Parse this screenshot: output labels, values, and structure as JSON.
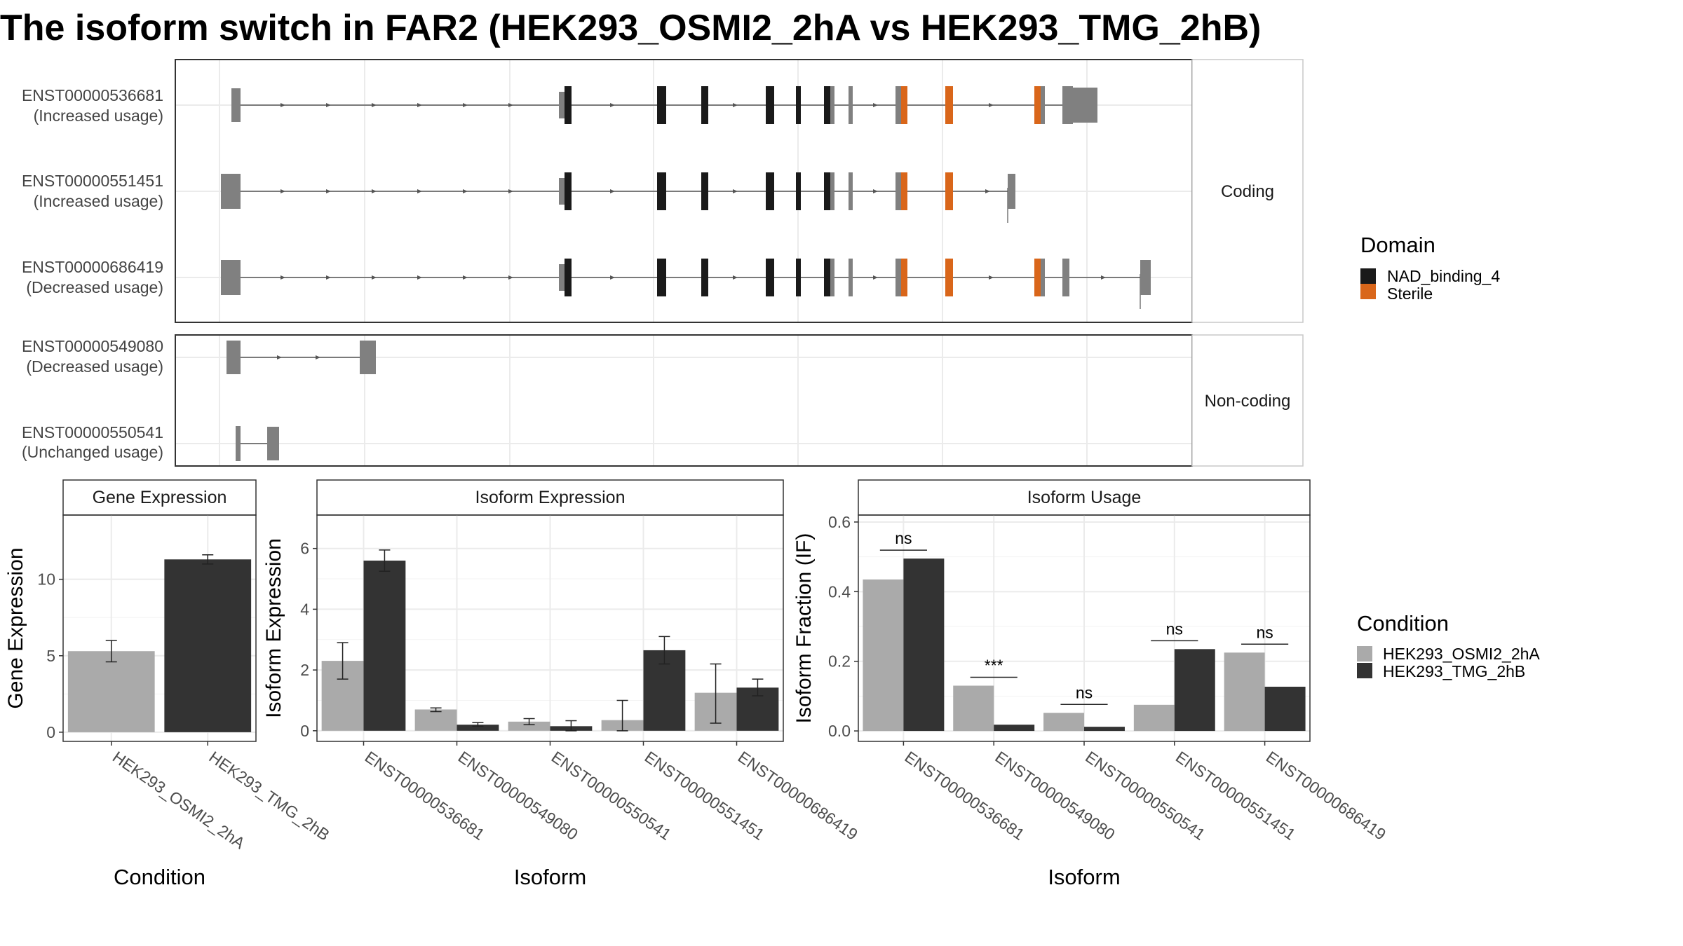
{
  "title": "The isoform switch in FAR2 (HEK293_OSMI2_2hA vs HEK293_TMG_2hB)",
  "colors": {
    "exon": "#808080",
    "intron": "#555555",
    "cond1": "#aaaaaa",
    "cond2": "#333333",
    "NAD_binding_4": "#1a1a1a",
    "Sterile": "#d9661a",
    "panel_border": "#333333",
    "strip_border": "#c8c8c8",
    "grid": "#ebebeb"
  },
  "structure": {
    "facets": [
      "Coding",
      "Non-coding"
    ],
    "domain_legend": {
      "title": "Domain",
      "items": [
        "NAD_binding_4",
        "Sterile"
      ]
    },
    "tracks": [
      {
        "id": "ENST00000536681",
        "usage": "(Increased usage)",
        "facet": "Coding"
      },
      {
        "id": "ENST00000551451",
        "usage": "(Increased usage)",
        "facet": "Coding"
      },
      {
        "id": "ENST00000686419",
        "usage": "(Decreased usage)",
        "facet": "Coding"
      },
      {
        "id": "ENST00000549080",
        "usage": "(Decreased usage)",
        "facet": "Non-coding"
      },
      {
        "id": "ENST00000550541",
        "usage": "(Unchanged usage)",
        "facet": "Non-coding"
      }
    ]
  },
  "chart_data": [
    {
      "type": "bar",
      "title": "Gene Expression",
      "xlabel": "Condition",
      "ylabel": "Gene Expression",
      "categories": [
        "HEK293_OSMI2_2hA",
        "HEK293_TMG_2hB"
      ],
      "values": [
        5.3,
        11.3
      ],
      "errors": [
        [
          4.6,
          6.0
        ],
        [
          11.0,
          11.6
        ]
      ],
      "ylim": [
        -0.6,
        14.2
      ],
      "yticks": [
        0,
        5,
        10
      ],
      "grid": true
    },
    {
      "type": "bar",
      "title": "Isoform Expression",
      "xlabel": "Isoform",
      "ylabel": "Isoform Expression",
      "categories": [
        "ENST00000536681",
        "ENST00000549080",
        "ENST00000550541",
        "ENST00000551451",
        "ENST00000686419"
      ],
      "series": [
        {
          "name": "HEK293_OSMI2_2hA",
          "values": [
            2.3,
            0.7,
            0.3,
            0.35,
            1.25
          ],
          "errors": [
            [
              1.7,
              2.9
            ],
            [
              0.63,
              0.75
            ],
            [
              0.2,
              0.4
            ],
            [
              0.0,
              1.0
            ],
            [
              0.25,
              2.2
            ]
          ]
        },
        {
          "name": "HEK293_TMG_2hB",
          "values": [
            5.6,
            0.2,
            0.15,
            2.65,
            1.42
          ],
          "errors": [
            [
              5.25,
              5.95
            ],
            [
              0.15,
              0.27
            ],
            [
              0.0,
              0.33
            ],
            [
              2.2,
              3.1
            ],
            [
              1.15,
              1.7
            ]
          ]
        }
      ],
      "ylim": [
        -0.35,
        7.1
      ],
      "yticks": [
        0,
        2,
        4,
        6
      ],
      "grid": true
    },
    {
      "type": "bar",
      "title": "Isoform Usage",
      "xlabel": "Isoform",
      "ylabel": "Isoform Fraction (IF)",
      "categories": [
        "ENST00000536681",
        "ENST00000549080",
        "ENST00000550541",
        "ENST00000551451",
        "ENST00000686419"
      ],
      "series": [
        {
          "name": "HEK293_OSMI2_2hA",
          "values": [
            0.435,
            0.13,
            0.052,
            0.075,
            0.225
          ]
        },
        {
          "name": "HEK293_TMG_2hB",
          "values": [
            0.495,
            0.018,
            0.012,
            0.235,
            0.127
          ]
        }
      ],
      "significance": [
        "ns",
        "***",
        "ns",
        "ns",
        "ns"
      ],
      "ylim": [
        -0.03,
        0.62
      ],
      "yticks": [
        "0.0",
        "0.2",
        "0.4",
        "0.6"
      ],
      "grid": true,
      "legend": {
        "title": "Condition",
        "placement": "right",
        "items": [
          "HEK293_OSMI2_2hA",
          "HEK293_TMG_2hB"
        ]
      }
    }
  ]
}
